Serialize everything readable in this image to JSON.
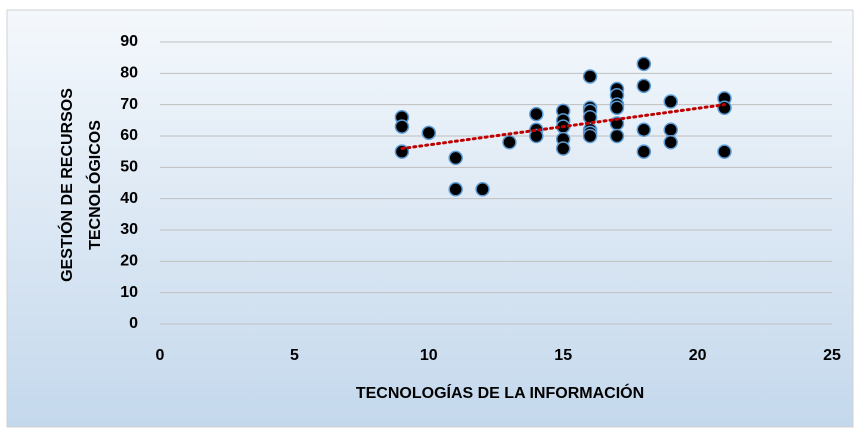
{
  "chart_data": {
    "type": "scatter",
    "x_label": "TECNOLOGÍAS DE LA INFORMACIÓN",
    "y_label": [
      "GESTIÓN DE RECURSOS",
      "TECNOLÓGICOS"
    ],
    "x": [
      9,
      9,
      9,
      10,
      11,
      11,
      12,
      13,
      14,
      14,
      14,
      15,
      15,
      15,
      15,
      15,
      16,
      16,
      16,
      16,
      16,
      16,
      16,
      17,
      17,
      17,
      17,
      17,
      17,
      18,
      18,
      18,
      18,
      19,
      19,
      19,
      21,
      21,
      21
    ],
    "values": [
      66,
      63,
      55,
      61,
      53,
      43,
      43,
      58,
      67,
      62,
      60,
      68,
      65,
      63,
      59,
      56,
      79,
      69,
      68,
      66,
      62,
      61,
      60,
      75,
      73,
      70,
      69,
      64,
      60,
      83,
      76,
      62,
      55,
      71,
      62,
      58,
      72,
      69,
      55
    ],
    "color": "#000000",
    "trendline": {
      "x": [
        9,
        21
      ],
      "values": [
        56,
        70
      ],
      "color": "#c00000"
    },
    "xlim": [
      0,
      25
    ],
    "xticks": [
      0,
      5,
      10,
      15,
      20,
      25
    ],
    "ylim": [
      0,
      90
    ],
    "yticks": [
      0,
      10,
      20,
      30,
      40,
      50,
      60,
      70,
      80,
      90
    ],
    "grid": true
  }
}
